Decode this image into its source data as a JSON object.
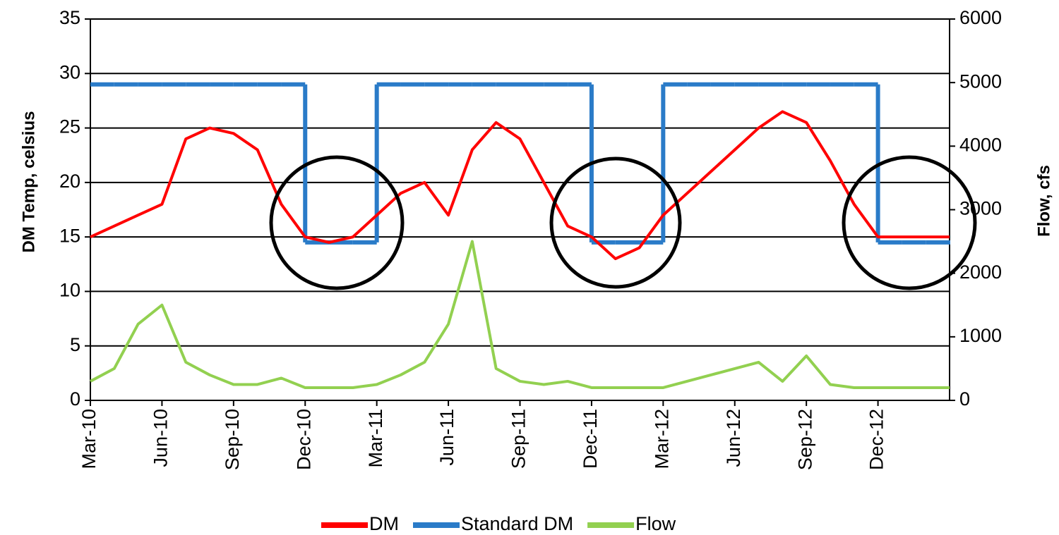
{
  "chart_data": {
    "type": "line",
    "y_label": "DM Temp, celsius",
    "y2_label": "Flow, cfs",
    "x": [
      "2010-03",
      "2010-04",
      "2010-05",
      "2010-06",
      "2010-07",
      "2010-08",
      "2010-09",
      "2010-10",
      "2010-11",
      "2010-12",
      "2011-01",
      "2011-02",
      "2011-03",
      "2011-04",
      "2011-05",
      "2011-06",
      "2011-07",
      "2011-08",
      "2011-09",
      "2011-10",
      "2011-11",
      "2011-12",
      "2012-01",
      "2012-02",
      "2012-03",
      "2012-04",
      "2012-05",
      "2012-06",
      "2012-07",
      "2012-08",
      "2012-09",
      "2012-10",
      "2012-11",
      "2012-12",
      "2013-01",
      "2013-02",
      "2013-03"
    ],
    "series": [
      {
        "name": "DM",
        "color": "#ff0000",
        "values": [
          15,
          16,
          17,
          18,
          24,
          25,
          24.5,
          23,
          18,
          15,
          14.5,
          15,
          17,
          19,
          20,
          17,
          23,
          25.5,
          24,
          20,
          16,
          15,
          13,
          14,
          17,
          19,
          21,
          23,
          25,
          26.5,
          25.5,
          22,
          18,
          15,
          15,
          15,
          15
        ]
      },
      {
        "name": "Standard DM",
        "color": "#2a7bc8",
        "step": true,
        "values": [
          29,
          29,
          29,
          29,
          29,
          29,
          29,
          29,
          29,
          14.5,
          14.5,
          14.5,
          29,
          29,
          29,
          29,
          29,
          29,
          29,
          29,
          29,
          14.5,
          14.5,
          14.5,
          29,
          29,
          29,
          29,
          29,
          29,
          29,
          29,
          29,
          14.5,
          14.5,
          14.5,
          14.5
        ]
      },
      {
        "name": "Flow",
        "color": "#92d050",
        "axis": "y2",
        "values": [
          300,
          500,
          1200,
          1500,
          600,
          400,
          250,
          250,
          350,
          200,
          200,
          200,
          250,
          400,
          600,
          1200,
          2500,
          500,
          300,
          250,
          300,
          200,
          200,
          200,
          200,
          300,
          400,
          500,
          600,
          300,
          700,
          250,
          200,
          200,
          200,
          200,
          200
        ]
      }
    ],
    "xlim": [
      "2010-03",
      "2013-03"
    ],
    "xticks": [
      {
        "value": "2010-03",
        "label": "Mar-10"
      },
      {
        "value": "2010-06",
        "label": "Jun-10"
      },
      {
        "value": "2010-09",
        "label": "Sep-10"
      },
      {
        "value": "2010-12",
        "label": "Dec-10"
      },
      {
        "value": "2011-03",
        "label": "Mar-11"
      },
      {
        "value": "2011-06",
        "label": "Jun-11"
      },
      {
        "value": "2011-09",
        "label": "Sep-11"
      },
      {
        "value": "2011-12",
        "label": "Dec-11"
      },
      {
        "value": "2012-03",
        "label": "Mar-12"
      },
      {
        "value": "2012-06",
        "label": "Jun-12"
      },
      {
        "value": "2012-09",
        "label": "Sep-12"
      },
      {
        "value": "2012-12",
        "label": "Dec-12"
      }
    ],
    "ylim": [
      0,
      35
    ],
    "yticks": [
      0,
      5,
      10,
      15,
      20,
      25,
      30,
      35
    ],
    "y2lim": [
      0,
      6000
    ],
    "y2ticks": [
      0,
      1000,
      2000,
      3000,
      4000,
      5000,
      6000
    ],
    "grid": true,
    "legend": "bottom"
  }
}
